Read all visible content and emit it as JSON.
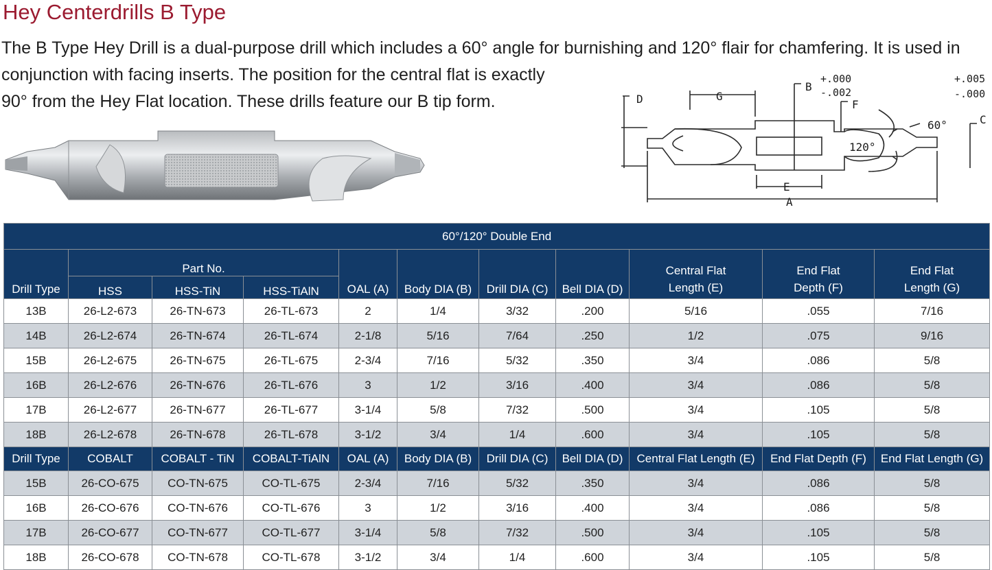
{
  "title": "Hey Centerdrills B Type",
  "description": {
    "line1": "The B Type Hey Drill is a dual-purpose drill which includes a 60° angle for burnishing and 120° flair for chamfering. It is used in",
    "line2": "conjunction with facing inserts. The position for the central flat is exactly",
    "line3": "90° from the Hey Flat location. These drills feature our B tip form."
  },
  "diagram": {
    "labels": {
      "A": "A",
      "B": "B",
      "C": "C",
      "D": "D",
      "E": "E",
      "F": "F",
      "G": "G",
      "angle_60": "60°",
      "angle_120": "120°",
      "tol_b_plus": "+.000",
      "tol_b_minus": "-.002",
      "tol_c_plus": "+.005",
      "tol_c_minus": "-.000"
    }
  },
  "table": {
    "band_title": "60°/120° Double End",
    "part_no_label": "Part No.",
    "header1": {
      "drill_type": "Drill Type",
      "hss": "HSS",
      "hss_tin": "HSS-TiN",
      "hss_tialn": "HSS-TiAlN",
      "oal": "OAL (A)",
      "body_dia": "Body DIA (B)",
      "drill_dia": "Drill DIA (C)",
      "bell_dia": "Bell DIA (D)",
      "central_flat_l1": "Central Flat",
      "central_flat_l2": "Length (E)",
      "end_depth_l1": "End Flat",
      "end_depth_l2": "Depth (F)",
      "end_length_l1": "End Flat",
      "end_length_l2": "Length (G)"
    },
    "header2": {
      "drill_type": "Drill Type",
      "cobalt": "COBALT",
      "cobalt_tin": "COBALT - TiN",
      "cobalt_tialn": "COBALT-TiAlN",
      "oal": "OAL (A)",
      "body_dia": "Body DIA (B)",
      "drill_dia": "Drill DIA (C)",
      "bell_dia": "Bell DIA (D)",
      "central_flat": "Central Flat Length (E)",
      "end_depth": "End Flat Depth (F)",
      "end_length": "End Flat Length (G)"
    },
    "hss_rows": [
      [
        "13B",
        "26-L2-673",
        "26-TN-673",
        "26-TL-673",
        "2",
        "1/4",
        "3/32",
        ".200",
        "5/16",
        ".055",
        "7/16"
      ],
      [
        "14B",
        "26-L2-674",
        "26-TN-674",
        "26-TL-674",
        "2-1/8",
        "5/16",
        "7/64",
        ".250",
        "1/2",
        ".075",
        "9/16"
      ],
      [
        "15B",
        "26-L2-675",
        "26-TN-675",
        "26-TL-675",
        "2-3/4",
        "7/16",
        "5/32",
        ".350",
        "3/4",
        ".086",
        "5/8"
      ],
      [
        "16B",
        "26-L2-676",
        "26-TN-676",
        "26-TL-676",
        "3",
        "1/2",
        "3/16",
        ".400",
        "3/4",
        ".086",
        "5/8"
      ],
      [
        "17B",
        "26-L2-677",
        "26-TN-677",
        "26-TL-677",
        "3-1/4",
        "5/8",
        "7/32",
        ".500",
        "3/4",
        ".105",
        "5/8"
      ],
      [
        "18B",
        "26-L2-678",
        "26-TN-678",
        "26-TL-678",
        "3-1/2",
        "3/4",
        "1/4",
        ".600",
        "3/4",
        ".105",
        "5/8"
      ]
    ],
    "cobalt_rows": [
      [
        "15B",
        "26-CO-675",
        "CO-TN-675",
        "CO-TL-675",
        "2-3/4",
        "7/16",
        "5/32",
        ".350",
        "3/4",
        ".086",
        "5/8"
      ],
      [
        "16B",
        "26-CO-676",
        "CO-TN-676",
        "CO-TL-676",
        "3",
        "1/2",
        "3/16",
        ".400",
        "3/4",
        ".086",
        "5/8"
      ],
      [
        "17B",
        "26-CO-677",
        "CO-TN-677",
        "CO-TL-677",
        "3-1/4",
        "5/8",
        "7/32",
        ".500",
        "3/4",
        ".105",
        "5/8"
      ],
      [
        "18B",
        "26-CO-678",
        "CO-TN-678",
        "CO-TL-678",
        "3-1/2",
        "3/4",
        "1/4",
        ".600",
        "3/4",
        ".105",
        "5/8"
      ]
    ]
  },
  "colors": {
    "title": "#9b1b30",
    "header_bg": "#123a68",
    "row_alt": "#cfd4da"
  }
}
